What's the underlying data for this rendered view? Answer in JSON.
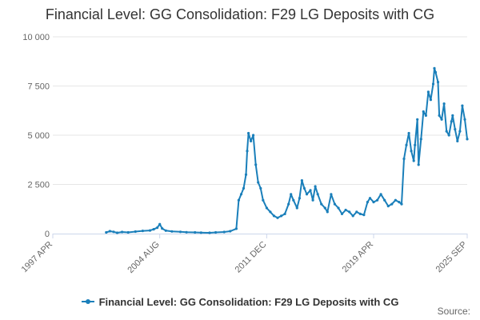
{
  "title": "Financial Level: GG Consolidation: F29 LG Deposits with CG",
  "credits": "Source:",
  "colors": {
    "series": "#1a7fba",
    "grid": "#e6e6e6",
    "axis": "#ccd6eb"
  },
  "chart_data": {
    "type": "line",
    "title": "Financial Level: GG Consolidation: F29 LG Deposits with CG",
    "x_axis": {
      "type": "time",
      "min": "1997-04",
      "max": "2025-09",
      "tick_dates": [
        "1997-04",
        "2004-08",
        "2011-12",
        "2019-04",
        "2025-09"
      ],
      "tick_labels": [
        "1997 APR",
        "2004 AUG",
        "2011 DEC",
        "2019 APR",
        "2025 SEP"
      ]
    },
    "y_axis": {
      "min": 0,
      "max": 10000,
      "ticks": [
        0,
        2500,
        5000,
        7500,
        10000
      ],
      "tick_labels": [
        "0",
        "2 500",
        "5 000",
        "7 500",
        "10 000"
      ]
    },
    "grid": true,
    "legend": "bottom-center",
    "series": [
      {
        "name": "Financial Level: GG Consolidation: F29 LG Deposits with CG",
        "color": "#1a7fba",
        "data": [
          [
            "2000-12",
            60
          ],
          [
            "2001-03",
            120
          ],
          [
            "2001-06",
            90
          ],
          [
            "2001-09",
            40
          ],
          [
            "2002-01",
            80
          ],
          [
            "2002-06",
            60
          ],
          [
            "2002-12",
            100
          ],
          [
            "2003-06",
            140
          ],
          [
            "2003-12",
            160
          ],
          [
            "2004-03",
            220
          ],
          [
            "2004-06",
            300
          ],
          [
            "2004-08",
            480
          ],
          [
            "2004-10",
            260
          ],
          [
            "2005-01",
            150
          ],
          [
            "2005-06",
            110
          ],
          [
            "2006-01",
            90
          ],
          [
            "2006-06",
            70
          ],
          [
            "2007-01",
            60
          ],
          [
            "2007-06",
            50
          ],
          [
            "2008-01",
            40
          ],
          [
            "2008-06",
            60
          ],
          [
            "2009-01",
            80
          ],
          [
            "2009-06",
            120
          ],
          [
            "2009-11",
            250
          ],
          [
            "2010-01",
            1700
          ],
          [
            "2010-03",
            2000
          ],
          [
            "2010-05",
            2300
          ],
          [
            "2010-07",
            3000
          ],
          [
            "2010-08",
            4200
          ],
          [
            "2010-09",
            5100
          ],
          [
            "2010-11",
            4700
          ],
          [
            "2011-01",
            5000
          ],
          [
            "2011-03",
            3500
          ],
          [
            "2011-05",
            2600
          ],
          [
            "2011-07",
            2300
          ],
          [
            "2011-09",
            1700
          ],
          [
            "2011-12",
            1300
          ],
          [
            "2012-03",
            1100
          ],
          [
            "2012-06",
            900
          ],
          [
            "2012-09",
            800
          ],
          [
            "2012-12",
            900
          ],
          [
            "2013-03",
            1000
          ],
          [
            "2013-06",
            1500
          ],
          [
            "2013-08",
            2000
          ],
          [
            "2013-10",
            1700
          ],
          [
            "2014-01",
            1300
          ],
          [
            "2014-03",
            1800
          ],
          [
            "2014-05",
            2700
          ],
          [
            "2014-07",
            2300
          ],
          [
            "2014-09",
            2000
          ],
          [
            "2014-12",
            2200
          ],
          [
            "2015-02",
            1700
          ],
          [
            "2015-04",
            2400
          ],
          [
            "2015-06",
            2000
          ],
          [
            "2015-09",
            1500
          ],
          [
            "2015-12",
            1300
          ],
          [
            "2016-02",
            1100
          ],
          [
            "2016-05",
            2000
          ],
          [
            "2016-08",
            1500
          ],
          [
            "2016-11",
            1300
          ],
          [
            "2017-02",
            1000
          ],
          [
            "2017-05",
            1200
          ],
          [
            "2017-08",
            1100
          ],
          [
            "2017-11",
            900
          ],
          [
            "2018-02",
            1100
          ],
          [
            "2018-05",
            1000
          ],
          [
            "2018-08",
            950
          ],
          [
            "2018-11",
            1600
          ],
          [
            "2019-01",
            1800
          ],
          [
            "2019-04",
            1600
          ],
          [
            "2019-07",
            1700
          ],
          [
            "2019-10",
            2000
          ],
          [
            "2020-01",
            1700
          ],
          [
            "2020-04",
            1400
          ],
          [
            "2020-07",
            1500
          ],
          [
            "2020-10",
            1700
          ],
          [
            "2021-01",
            1600
          ],
          [
            "2021-03",
            1500
          ],
          [
            "2021-05",
            3800
          ],
          [
            "2021-07",
            4500
          ],
          [
            "2021-09",
            5100
          ],
          [
            "2021-11",
            4200
          ],
          [
            "2022-01",
            3700
          ],
          [
            "2022-02",
            4500
          ],
          [
            "2022-04",
            5800
          ],
          [
            "2022-05",
            3500
          ],
          [
            "2022-07",
            4800
          ],
          [
            "2022-09",
            6200
          ],
          [
            "2022-11",
            6000
          ],
          [
            "2023-01",
            7200
          ],
          [
            "2023-03",
            6800
          ],
          [
            "2023-05",
            7600
          ],
          [
            "2023-06",
            8400
          ],
          [
            "2023-07",
            8200
          ],
          [
            "2023-09",
            7700
          ],
          [
            "2023-10",
            6000
          ],
          [
            "2023-12",
            5800
          ],
          [
            "2024-02",
            6600
          ],
          [
            "2024-04",
            5200
          ],
          [
            "2024-06",
            5000
          ],
          [
            "2024-08",
            5700
          ],
          [
            "2024-09",
            6000
          ],
          [
            "2024-11",
            5300
          ],
          [
            "2025-01",
            4700
          ],
          [
            "2025-03",
            5200
          ],
          [
            "2025-05",
            6500
          ],
          [
            "2025-07",
            5800
          ],
          [
            "2025-09",
            4800
          ]
        ]
      }
    ]
  }
}
